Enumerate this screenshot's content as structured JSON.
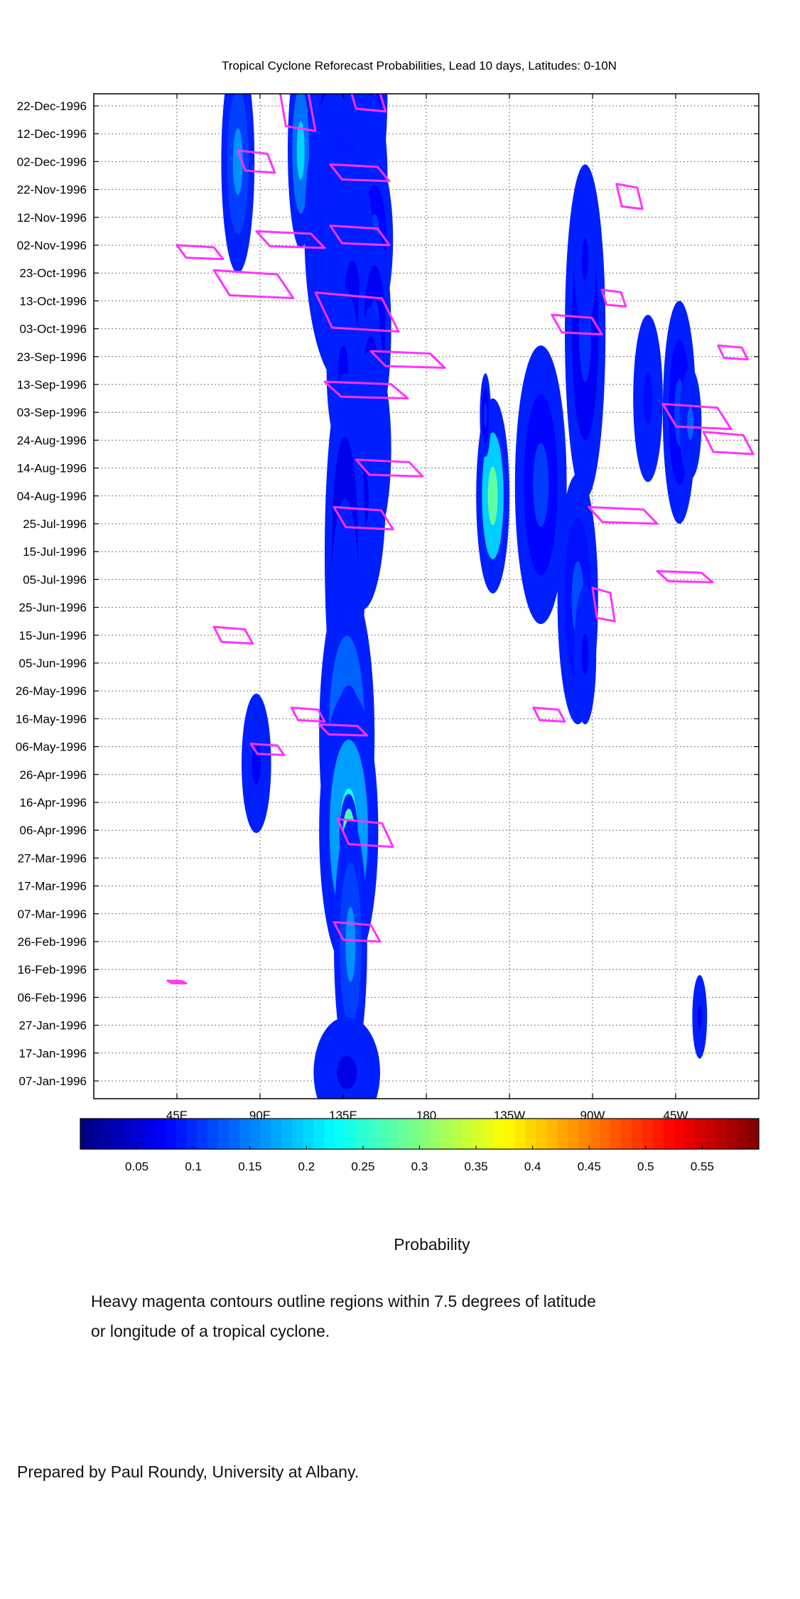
{
  "chart_data": {
    "type": "heatmap",
    "title": "Tropical Cyclone Reforecast Probabilities, Lead 10 days, Latitudes: 0-10N",
    "x_ticks": [
      "45E",
      "90E",
      "135E",
      "180",
      "135W",
      "90W",
      "45W"
    ],
    "y_ticks": [
      "22-Dec-1996",
      "12-Dec-1996",
      "02-Dec-1996",
      "22-Nov-1996",
      "12-Nov-1996",
      "02-Nov-1996",
      "23-Oct-1996",
      "13-Oct-1996",
      "03-Oct-1996",
      "23-Sep-1996",
      "13-Sep-1996",
      "03-Sep-1996",
      "24-Aug-1996",
      "14-Aug-1996",
      "04-Aug-1996",
      "25-Jul-1996",
      "15-Jul-1996",
      "05-Jul-1996",
      "25-Jun-1996",
      "15-Jun-1996",
      "05-Jun-1996",
      "26-May-1996",
      "16-May-1996",
      "06-May-1996",
      "26-Apr-1996",
      "16-Apr-1996",
      "06-Apr-1996",
      "27-Mar-1996",
      "17-Mar-1996",
      "07-Mar-1996",
      "26-Feb-1996",
      "16-Feb-1996",
      "06-Feb-1996",
      "27-Jan-1996",
      "17-Jan-1996",
      "07-Jan-1996"
    ],
    "x_range_degrees_east": [
      0,
      360
    ],
    "grid": true,
    "colorbar": {
      "range": [
        0,
        0.6
      ],
      "ticks": [
        "0.05",
        "0.1",
        "0.15",
        "0.2",
        "0.25",
        "0.3",
        "0.35",
        "0.4",
        "0.45",
        "0.5",
        "0.55"
      ],
      "colormap": "jet",
      "label": "Probability"
    },
    "contour_color": "#ff33ff",
    "blobs": [
      {
        "lon": 150,
        "date": "1996-12-27",
        "w": 18,
        "d": 8,
        "p": 0.12
      },
      {
        "lon": 115,
        "date": "1996-12-18",
        "w": 12,
        "d": 5,
        "p": 0.08
      },
      {
        "lon": 112,
        "date": "1996-12-06",
        "w": 14,
        "d": 7,
        "p": 0.2
      },
      {
        "lon": 78,
        "date": "1996-12-02",
        "w": 18,
        "d": 8,
        "p": 0.16
      },
      {
        "lon": 128,
        "date": "1996-12-05",
        "w": 20,
        "d": 9,
        "p": 0.1
      },
      {
        "lon": 148,
        "date": "1996-11-28",
        "w": 22,
        "d": 6,
        "p": 0.06
      },
      {
        "lon": 135,
        "date": "1996-11-07",
        "w": 42,
        "d": 11,
        "p": 0.13
      },
      {
        "lon": 152,
        "date": "1996-11-04",
        "w": 20,
        "d": 6,
        "p": 0.11
      },
      {
        "lon": 138,
        "date": "1996-10-26",
        "w": 28,
        "d": 8,
        "p": 0.07
      },
      {
        "lon": 140,
        "date": "1996-10-14",
        "w": 28,
        "d": 9,
        "p": 0.07
      },
      {
        "lon": 152,
        "date": "1996-10-03",
        "w": 18,
        "d": 7,
        "p": 0.1
      },
      {
        "lon": 135,
        "date": "1996-09-18",
        "w": 18,
        "d": 6,
        "p": 0.07
      },
      {
        "lon": 150,
        "date": "1996-09-11",
        "w": 14,
        "d": 6,
        "p": 0.09
      },
      {
        "lon": 150,
        "date": "1996-08-21",
        "w": 22,
        "d": 7,
        "p": 0.06
      },
      {
        "lon": 145,
        "date": "1996-08-03",
        "w": 26,
        "d": 8,
        "p": 0.06
      },
      {
        "lon": 136,
        "date": "1996-07-14",
        "w": 22,
        "d": 13,
        "p": 0.09
      },
      {
        "lon": 136,
        "date": "1996-06-19",
        "w": 16,
        "d": 9,
        "p": 0.06
      },
      {
        "lon": 137,
        "date": "1996-05-10",
        "w": 30,
        "d": 11,
        "p": 0.19
      },
      {
        "lon": 138,
        "date": "1996-05-03",
        "w": 16,
        "d": 5,
        "p": 0.18
      },
      {
        "lon": 88,
        "date": "1996-04-30",
        "w": 16,
        "d": 5,
        "p": 0.07
      },
      {
        "lon": 138,
        "date": "1996-04-06",
        "w": 32,
        "d": 10,
        "p": 0.24
      },
      {
        "lon": 138,
        "date": "1996-04-04",
        "w": 10,
        "d": 3,
        "p": 0.38
      },
      {
        "lon": 139,
        "date": "1996-02-25",
        "w": 18,
        "d": 9,
        "p": 0.16
      },
      {
        "lon": 137,
        "date": "1996-01-10",
        "w": 36,
        "d": 4,
        "p": 0.06
      },
      {
        "lon": 216,
        "date": "1996-08-04",
        "w": 18,
        "d": 7,
        "p": 0.28
      },
      {
        "lon": 242,
        "date": "1996-08-08",
        "w": 28,
        "d": 10,
        "p": 0.11
      },
      {
        "lon": 266,
        "date": "1996-10-02",
        "w": 22,
        "d": 12,
        "p": 0.1
      },
      {
        "lon": 266,
        "date": "1996-10-28",
        "w": 12,
        "d": 5,
        "p": 0.07
      },
      {
        "lon": 262,
        "date": "1996-06-28",
        "w": 22,
        "d": 9,
        "p": 0.12
      },
      {
        "lon": 266,
        "date": "1996-06-08",
        "w": 12,
        "d": 5,
        "p": 0.07
      },
      {
        "lon": 300,
        "date": "1996-09-08",
        "w": 16,
        "d": 6,
        "p": 0.08
      },
      {
        "lon": 317,
        "date": "1996-09-03",
        "w": 18,
        "d": 8,
        "p": 0.11
      },
      {
        "lon": 323,
        "date": "1996-08-30",
        "w": 12,
        "d": 4,
        "p": 0.13
      },
      {
        "lon": 212,
        "date": "1996-09-02",
        "w": 6,
        "d": 3,
        "p": 0.1
      },
      {
        "lon": 328,
        "date": "1996-01-30",
        "w": 8,
        "d": 3,
        "p": 0.06
      }
    ],
    "contours": [
      {
        "lon0": 78,
        "lon1": 98,
        "date0": "1996-12-06",
        "date1": "1996-11-28"
      },
      {
        "lon0": 138,
        "lon1": 158,
        "date0": "1996-12-30",
        "date1": "1996-12-20"
      },
      {
        "lon0": 100,
        "lon1": 120,
        "date0": "1996-12-30",
        "date1": "1996-12-13"
      },
      {
        "lon0": 128,
        "lon1": 160,
        "date0": "1996-12-01",
        "date1": "1996-11-25"
      },
      {
        "lon0": 128,
        "lon1": 160,
        "date0": "1996-11-09",
        "date1": "1996-11-02"
      },
      {
        "lon0": 88,
        "lon1": 125,
        "date0": "1996-11-07",
        "date1": "1996-11-01"
      },
      {
        "lon0": 45,
        "lon1": 70,
        "date0": "1996-11-02",
        "date1": "1996-10-28"
      },
      {
        "lon0": 65,
        "lon1": 108,
        "date0": "1996-10-24",
        "date1": "1996-10-14"
      },
      {
        "lon0": 120,
        "lon1": 165,
        "date0": "1996-10-16",
        "date1": "1996-10-02"
      },
      {
        "lon0": 150,
        "lon1": 190,
        "date0": "1996-09-25",
        "date1": "1996-09-19"
      },
      {
        "lon0": 125,
        "lon1": 170,
        "date0": "1996-09-14",
        "date1": "1996-09-08"
      },
      {
        "lon0": 142,
        "lon1": 178,
        "date0": "1996-08-17",
        "date1": "1996-08-11"
      },
      {
        "lon0": 130,
        "lon1": 162,
        "date0": "1996-07-31",
        "date1": "1996-07-23"
      },
      {
        "lon0": 248,
        "lon1": 275,
        "date0": "1996-10-08",
        "date1": "1996-10-01"
      },
      {
        "lon0": 275,
        "lon1": 288,
        "date0": "1996-10-17",
        "date1": "1996-10-11"
      },
      {
        "lon0": 308,
        "lon1": 345,
        "date0": "1996-09-06",
        "date1": "1996-08-28"
      },
      {
        "lon0": 330,
        "lon1": 357,
        "date0": "1996-08-27",
        "date1": "1996-08-19"
      },
      {
        "lon0": 268,
        "lon1": 305,
        "date0": "1996-07-31",
        "date1": "1996-07-25"
      },
      {
        "lon0": 270,
        "lon1": 282,
        "date0": "1996-07-02",
        "date1": "1996-06-20"
      },
      {
        "lon0": 305,
        "lon1": 335,
        "date0": "1996-07-08",
        "date1": "1996-07-04"
      },
      {
        "lon0": 338,
        "lon1": 354,
        "date0": "1996-09-27",
        "date1": "1996-09-22"
      },
      {
        "lon0": 283,
        "lon1": 297,
        "date0": "1996-11-24",
        "date1": "1996-11-15"
      },
      {
        "lon0": 238,
        "lon1": 255,
        "date0": "1996-05-20",
        "date1": "1996-05-15"
      },
      {
        "lon0": 122,
        "lon1": 148,
        "date0": "1996-05-14",
        "date1": "1996-05-10"
      },
      {
        "lon0": 85,
        "lon1": 103,
        "date0": "1996-05-07",
        "date1": "1996-05-03"
      },
      {
        "lon0": 132,
        "lon1": 162,
        "date0": "1996-04-10",
        "date1": "1996-03-31"
      },
      {
        "lon0": 130,
        "lon1": 155,
        "date0": "1996-03-04",
        "date1": "1996-02-26"
      },
      {
        "lon0": 65,
        "lon1": 86,
        "date0": "1996-06-18",
        "date1": "1996-06-12"
      },
      {
        "lon0": 107,
        "lon1": 125,
        "date0": "1996-05-20",
        "date1": "1996-05-15"
      },
      {
        "lon0": 40,
        "lon1": 50,
        "date0": "1996-02-12",
        "date1": "1996-02-11"
      }
    ]
  },
  "captions": {
    "colorbar_label": "Probability",
    "note_line1": "Heavy magenta contours outline regions within 7.5 degrees of latitude",
    "note_line2": "or longitude of a tropical cyclone.",
    "prepared_by": "Prepared by Paul Roundy, University at Albany."
  }
}
